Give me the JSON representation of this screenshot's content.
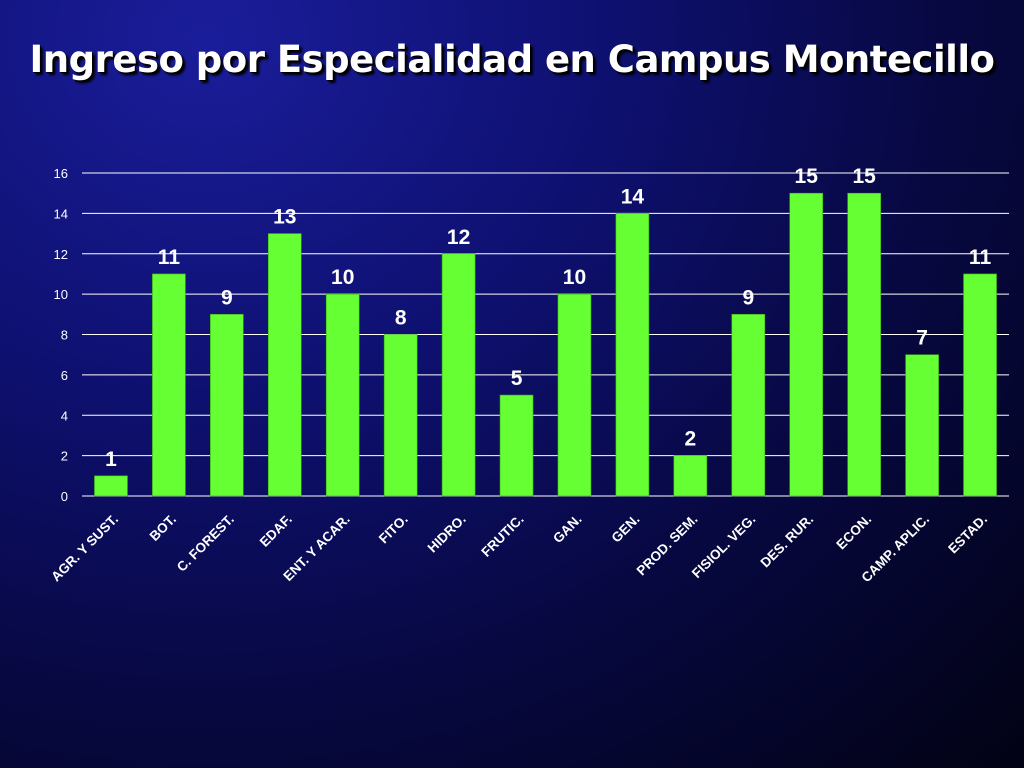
{
  "title": "Ingreso por Especialidad en Campus Montecillo",
  "colors": {
    "bar": "#66ff33",
    "bar_stroke": "#3fae1a",
    "grid": "#ffffff",
    "text": "#ffffff"
  },
  "chart_data": {
    "type": "bar",
    "title": "Ingreso por Especialidad en Campus Montecillo",
    "xlabel": "",
    "ylabel": "",
    "categories": [
      "AGR. Y SUST.",
      "BOT.",
      "C. FOREST.",
      "EDAF.",
      "ENT. Y ACAR.",
      "FITO.",
      "HIDRO.",
      "FRUTIC.",
      "GAN.",
      "GEN.",
      "PROD. SEM.",
      "FISIOL. VEG.",
      "DES. RUR.",
      "ECON.",
      "CAMP. APLIC.",
      "ESTAD."
    ],
    "values": [
      1,
      11,
      9,
      13,
      10,
      8,
      12,
      5,
      10,
      14,
      2,
      9,
      15,
      15,
      7,
      11
    ],
    "ylim": [
      0,
      16
    ],
    "yticks": [
      0,
      2,
      4,
      6,
      8,
      10,
      12,
      14,
      16
    ],
    "grid": true,
    "legend": false,
    "data_labels": true
  }
}
